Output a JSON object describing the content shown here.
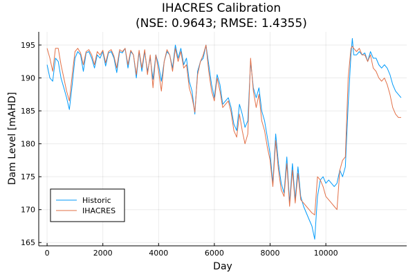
{
  "chart_data": {
    "type": "line",
    "title": "IHACRES Calibration",
    "subtitle": "(NSE: 0.9643; RMSE: 1.4355)",
    "xlabel": "Day",
    "ylabel": "Dam Level [mAHD]",
    "xlim": [
      -300,
      12900
    ],
    "ylim": [
      164.5,
      197.0
    ],
    "xticks": [
      0,
      2000,
      4000,
      6000,
      8000,
      10000
    ],
    "xtick_labels": [
      "0",
      "2000",
      "4000",
      "6000",
      "8000",
      "10000"
    ],
    "yticks": [
      165,
      170,
      175,
      180,
      185,
      190,
      195
    ],
    "grid": true,
    "legend_position": "bottom-left",
    "series": [
      {
        "name": "Historic",
        "color": "#009AFA",
        "points": [
          [
            0,
            192.0
          ],
          [
            100,
            190.0
          ],
          [
            200,
            189.5
          ],
          [
            300,
            193.0
          ],
          [
            400,
            192.5
          ],
          [
            500,
            190.0
          ],
          [
            600,
            188.5
          ],
          [
            700,
            187.0
          ],
          [
            800,
            185.2
          ],
          [
            900,
            189.0
          ],
          [
            1000,
            193.0
          ],
          [
            1100,
            194.0
          ],
          [
            1200,
            193.5
          ],
          [
            1300,
            191.0
          ],
          [
            1400,
            193.8
          ],
          [
            1500,
            194.0
          ],
          [
            1600,
            193.0
          ],
          [
            1700,
            191.5
          ],
          [
            1800,
            193.5
          ],
          [
            1900,
            193.0
          ],
          [
            2000,
            194.0
          ],
          [
            2100,
            191.8
          ],
          [
            2200,
            193.8
          ],
          [
            2300,
            194.0
          ],
          [
            2400,
            193.0
          ],
          [
            2500,
            190.8
          ],
          [
            2600,
            194.0
          ],
          [
            2700,
            193.8
          ],
          [
            2800,
            194.5
          ],
          [
            2900,
            191.5
          ],
          [
            3000,
            194.0
          ],
          [
            3100,
            193.5
          ],
          [
            3200,
            190.0
          ],
          [
            3300,
            194.0
          ],
          [
            3400,
            191.0
          ],
          [
            3500,
            194.0
          ],
          [
            3600,
            191.0
          ],
          [
            3700,
            193.0
          ],
          [
            3800,
            189.8
          ],
          [
            3900,
            193.5
          ],
          [
            4000,
            192.0
          ],
          [
            4100,
            189.5
          ],
          [
            4200,
            192.5
          ],
          [
            4300,
            194.0
          ],
          [
            4400,
            193.5
          ],
          [
            4500,
            191.5
          ],
          [
            4600,
            195.0
          ],
          [
            4700,
            193.0
          ],
          [
            4800,
            194.5
          ],
          [
            4900,
            192.0
          ],
          [
            5000,
            193.0
          ],
          [
            5100,
            189.5
          ],
          [
            5200,
            188.0
          ],
          [
            5300,
            184.5
          ],
          [
            5400,
            191.0
          ],
          [
            5500,
            192.5
          ],
          [
            5600,
            193.0
          ],
          [
            5700,
            195.0
          ],
          [
            5800,
            192.0
          ],
          [
            5900,
            189.0
          ],
          [
            6000,
            187.0
          ],
          [
            6100,
            190.5
          ],
          [
            6200,
            189.0
          ],
          [
            6300,
            186.0
          ],
          [
            6400,
            186.5
          ],
          [
            6500,
            187.0
          ],
          [
            6600,
            185.5
          ],
          [
            6700,
            183.0
          ],
          [
            6800,
            182.0
          ],
          [
            6900,
            186.0
          ],
          [
            7000,
            184.5
          ],
          [
            7100,
            182.5
          ],
          [
            7200,
            183.5
          ],
          [
            7300,
            192.5
          ],
          [
            7400,
            188.5
          ],
          [
            7500,
            187.0
          ],
          [
            7600,
            188.5
          ],
          [
            7700,
            185.0
          ],
          [
            7800,
            183.5
          ],
          [
            7900,
            181.0
          ],
          [
            8000,
            178.5
          ],
          [
            8100,
            174.0
          ],
          [
            8200,
            181.5
          ],
          [
            8300,
            177.0
          ],
          [
            8400,
            174.0
          ],
          [
            8500,
            172.5
          ],
          [
            8600,
            178.0
          ],
          [
            8700,
            171.0
          ],
          [
            8800,
            177.0
          ],
          [
            8900,
            171.5
          ],
          [
            9000,
            176.5
          ],
          [
            9100,
            172.0
          ],
          [
            9200,
            170.5
          ],
          [
            9300,
            169.5
          ],
          [
            9400,
            168.5
          ],
          [
            9500,
            167.5
          ],
          [
            9600,
            165.5
          ],
          [
            9700,
            172.0
          ],
          [
            9800,
            174.5
          ],
          [
            9900,
            175.0
          ],
          [
            10000,
            174.0
          ],
          [
            10100,
            174.5
          ],
          [
            10200,
            174.0
          ],
          [
            10300,
            173.5
          ],
          [
            10400,
            174.0
          ],
          [
            10500,
            176.0
          ],
          [
            10600,
            175.0
          ],
          [
            10700,
            176.5
          ],
          [
            10800,
            186.0
          ],
          [
            10900,
            193.5
          ],
          [
            10950,
            196.0
          ],
          [
            11000,
            193.5
          ],
          [
            11100,
            193.5
          ],
          [
            11200,
            194.0
          ],
          [
            11300,
            193.5
          ],
          [
            11400,
            193.8
          ],
          [
            11500,
            192.5
          ],
          [
            11600,
            194.0
          ],
          [
            11700,
            193.0
          ],
          [
            11800,
            193.0
          ],
          [
            11900,
            192.0
          ],
          [
            12000,
            191.5
          ],
          [
            12100,
            192.0
          ],
          [
            12200,
            191.5
          ],
          [
            12300,
            190.5
          ],
          [
            12400,
            189.0
          ],
          [
            12500,
            188.0
          ],
          [
            12600,
            187.5
          ],
          [
            12700,
            187.0
          ]
        ]
      },
      {
        "name": "IHACRES",
        "color": "#E26F46",
        "points": [
          [
            0,
            194.5
          ],
          [
            100,
            193.0
          ],
          [
            200,
            191.0
          ],
          [
            300,
            194.5
          ],
          [
            400,
            194.5
          ],
          [
            500,
            192.0
          ],
          [
            600,
            190.0
          ],
          [
            700,
            188.0
          ],
          [
            800,
            186.5
          ],
          [
            900,
            190.5
          ],
          [
            1000,
            194.0
          ],
          [
            1100,
            194.5
          ],
          [
            1200,
            193.8
          ],
          [
            1300,
            192.0
          ],
          [
            1400,
            194.0
          ],
          [
            1500,
            194.3
          ],
          [
            1600,
            193.5
          ],
          [
            1700,
            192.0
          ],
          [
            1800,
            194.0
          ],
          [
            1900,
            193.5
          ],
          [
            2000,
            194.2
          ],
          [
            2100,
            192.3
          ],
          [
            2200,
            194.0
          ],
          [
            2300,
            194.3
          ],
          [
            2400,
            193.3
          ],
          [
            2500,
            191.5
          ],
          [
            2600,
            194.3
          ],
          [
            2700,
            194.0
          ],
          [
            2800,
            194.5
          ],
          [
            2900,
            192.0
          ],
          [
            3000,
            194.2
          ],
          [
            3100,
            193.5
          ],
          [
            3200,
            190.5
          ],
          [
            3300,
            194.2
          ],
          [
            3400,
            191.5
          ],
          [
            3500,
            194.3
          ],
          [
            3600,
            190.5
          ],
          [
            3700,
            193.5
          ],
          [
            3800,
            188.5
          ],
          [
            3900,
            193.5
          ],
          [
            4000,
            191.0
          ],
          [
            4100,
            188.0
          ],
          [
            4200,
            192.5
          ],
          [
            4300,
            194.3
          ],
          [
            4400,
            193.5
          ],
          [
            4500,
            191.0
          ],
          [
            4600,
            194.5
          ],
          [
            4700,
            192.5
          ],
          [
            4800,
            194.0
          ],
          [
            4900,
            191.5
          ],
          [
            5000,
            192.0
          ],
          [
            5100,
            188.5
          ],
          [
            5200,
            187.0
          ],
          [
            5300,
            184.8
          ],
          [
            5400,
            190.5
          ],
          [
            5500,
            192.5
          ],
          [
            5600,
            193.5
          ],
          [
            5700,
            195.0
          ],
          [
            5800,
            191.0
          ],
          [
            5900,
            188.0
          ],
          [
            6000,
            186.5
          ],
          [
            6100,
            190.0
          ],
          [
            6200,
            188.0
          ],
          [
            6300,
            185.5
          ],
          [
            6400,
            186.0
          ],
          [
            6500,
            186.5
          ],
          [
            6600,
            184.8
          ],
          [
            6700,
            182.0
          ],
          [
            6800,
            181.0
          ],
          [
            6900,
            184.5
          ],
          [
            7000,
            182.0
          ],
          [
            7100,
            180.0
          ],
          [
            7200,
            181.5
          ],
          [
            7300,
            193.0
          ],
          [
            7400,
            188.0
          ],
          [
            7500,
            185.5
          ],
          [
            7600,
            187.5
          ],
          [
            7700,
            183.5
          ],
          [
            7800,
            182.0
          ],
          [
            7900,
            179.5
          ],
          [
            8000,
            177.5
          ],
          [
            8100,
            173.5
          ],
          [
            8200,
            180.5
          ],
          [
            8300,
            176.0
          ],
          [
            8400,
            173.0
          ],
          [
            8500,
            172.0
          ],
          [
            8600,
            177.0
          ],
          [
            8700,
            170.5
          ],
          [
            8800,
            176.0
          ],
          [
            8900,
            171.0
          ],
          [
            9000,
            175.5
          ],
          [
            9100,
            171.5
          ],
          [
            9200,
            171.0
          ],
          [
            9300,
            170.5
          ],
          [
            9400,
            170.0
          ],
          [
            9500,
            169.5
          ],
          [
            9600,
            169.2
          ],
          [
            9700,
            175.0
          ],
          [
            9800,
            174.5
          ],
          [
            9900,
            173.5
          ],
          [
            10000,
            172.0
          ],
          [
            10100,
            171.5
          ],
          [
            10200,
            171.0
          ],
          [
            10300,
            170.5
          ],
          [
            10400,
            170.0
          ],
          [
            10500,
            176.0
          ],
          [
            10600,
            177.5
          ],
          [
            10700,
            178.0
          ],
          [
            10800,
            190.0
          ],
          [
            10900,
            194.5
          ],
          [
            10950,
            194.8
          ],
          [
            11000,
            194.5
          ],
          [
            11100,
            194.0
          ],
          [
            11200,
            194.5
          ],
          [
            11300,
            193.5
          ],
          [
            11400,
            193.5
          ],
          [
            11500,
            192.5
          ],
          [
            11600,
            193.5
          ],
          [
            11700,
            191.5
          ],
          [
            11800,
            191.0
          ],
          [
            11900,
            190.0
          ],
          [
            12000,
            189.5
          ],
          [
            12100,
            190.0
          ],
          [
            12200,
            189.0
          ],
          [
            12300,
            187.5
          ],
          [
            12400,
            185.5
          ],
          [
            12500,
            184.5
          ],
          [
            12600,
            184.0
          ],
          [
            12700,
            184.0
          ]
        ]
      }
    ]
  }
}
